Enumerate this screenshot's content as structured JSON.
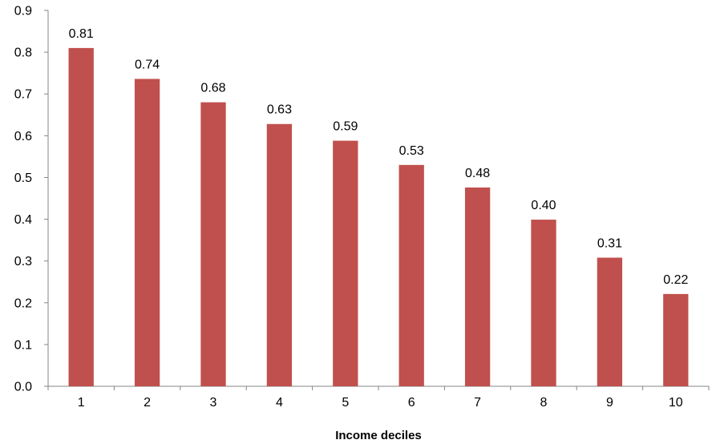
{
  "chart_data": {
    "type": "bar",
    "categories": [
      "1",
      "2",
      "3",
      "4",
      "5",
      "6",
      "7",
      "8",
      "9",
      "10"
    ],
    "values": [
      0.81,
      0.736,
      0.68,
      0.628,
      0.588,
      0.53,
      0.476,
      0.399,
      0.308,
      0.221
    ],
    "data_labels": [
      "0.81",
      "0.74",
      "0.68",
      "0.63",
      "0.59",
      "0.53",
      "0.48",
      "0.40",
      "0.31",
      "0.22"
    ],
    "xlabel": "Income deciles",
    "ylabel": "",
    "ylim": [
      0,
      0.9
    ],
    "yticks": [
      0.0,
      0.1,
      0.2,
      0.3,
      0.4,
      0.5,
      0.6,
      0.7,
      0.8,
      0.9
    ],
    "ytick_labels": [
      "0.0",
      "0.1",
      "0.2",
      "0.3",
      "0.4",
      "0.5",
      "0.6",
      "0.7",
      "0.8",
      "0.9"
    ],
    "grid": false,
    "legend": "none",
    "bar_color": "#c0504d"
  }
}
